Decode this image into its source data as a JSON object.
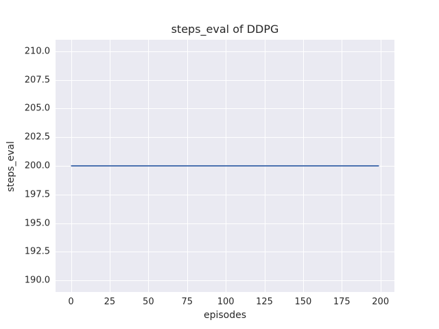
{
  "figure": {
    "kind": "matplotlib-seaborn-figure"
  },
  "colors": {
    "figure_bg": "#ffffff",
    "plot_bg": "#eaeaf2",
    "grid": "#ffffff",
    "line": "#4c72b0",
    "text": "#262626"
  },
  "chart_data": {
    "type": "line",
    "title": "steps_eval of DDPG",
    "xlabel": "episodes",
    "ylabel": "steps_eval",
    "xlim": [
      -10,
      209
    ],
    "ylim": [
      189,
      211
    ],
    "xticks": [
      0,
      25,
      50,
      75,
      100,
      125,
      150,
      175,
      200
    ],
    "xtick_labels": [
      "0",
      "25",
      "50",
      "75",
      "100",
      "125",
      "150",
      "175",
      "200"
    ],
    "yticks": [
      190.0,
      192.5,
      195.0,
      197.5,
      200.0,
      202.5,
      205.0,
      207.5,
      210.0
    ],
    "ytick_labels": [
      "190.0",
      "192.5",
      "195.0",
      "197.5",
      "200.0",
      "202.5",
      "205.0",
      "207.5",
      "210.0"
    ],
    "grid": true,
    "legend": "none",
    "series": [
      {
        "name": "steps_eval",
        "color": "#4c72b0",
        "description": "constant value 200 for every evaluated episode",
        "x": [
          0,
          199
        ],
        "y": [
          200,
          200
        ]
      }
    ]
  }
}
